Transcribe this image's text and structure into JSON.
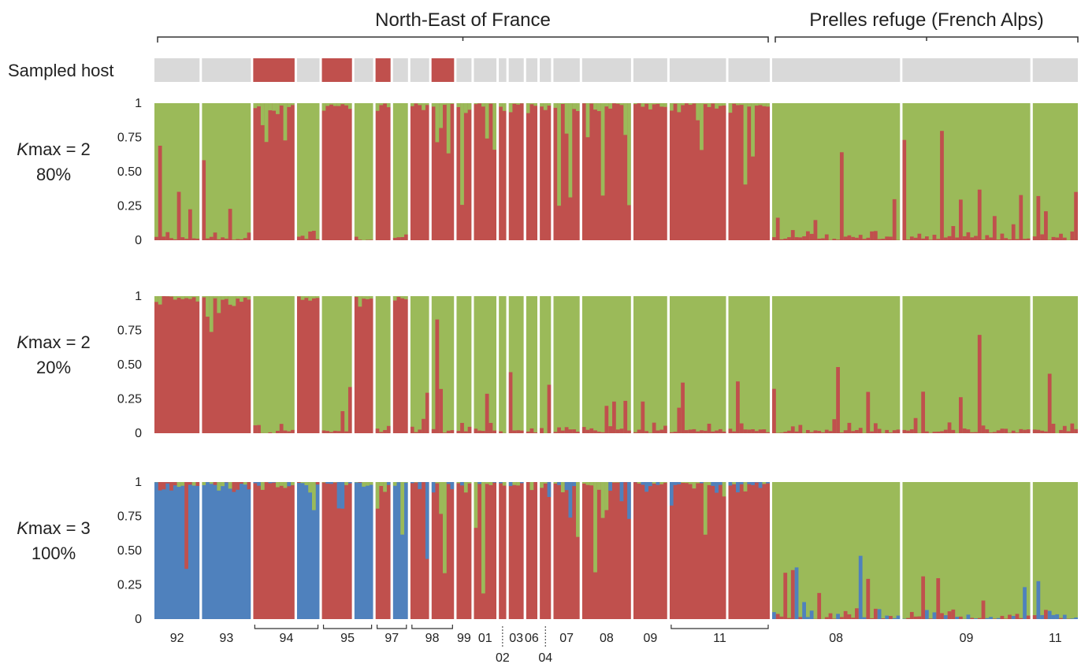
{
  "regions": [
    {
      "label": "North-East of France",
      "from": 0,
      "to": 19
    },
    {
      "label": "Prelles refuge (French Alps)",
      "from": 19,
      "to": 22
    }
  ],
  "host_row_label": "Sampled host",
  "colors": {
    "green": "#9bba59",
    "red": "#c0504d",
    "blue": "#4f81bd",
    "gray": "#d9d9d9",
    "separator": "#ffffff"
  },
  "chart_data": {
    "type": "bar",
    "stacked": true,
    "description_of_units": "Each population segment is a group of individuals; values give proportion of membership to each cluster",
    "ylim": [
      0,
      1
    ],
    "yticks": [
      "0",
      "0.25",
      "0.50",
      "0.75",
      "1"
    ],
    "populations": [
      {
        "id": "92",
        "n": 12,
        "host_red": false
      },
      {
        "id": "93",
        "n": 13,
        "host_red": false
      },
      {
        "id": "94a",
        "n": 11,
        "host_red": true
      },
      {
        "id": "94b",
        "n": 6,
        "host_red": false
      },
      {
        "id": "95a",
        "n": 8,
        "host_red": true
      },
      {
        "id": "95b",
        "n": 5,
        "host_red": false
      },
      {
        "id": "97a",
        "n": 4,
        "host_red": true
      },
      {
        "id": "97b",
        "n": 4,
        "host_red": false
      },
      {
        "id": "98a",
        "n": 5,
        "host_red": false
      },
      {
        "id": "98b",
        "n": 6,
        "host_red": true
      },
      {
        "id": "99",
        "n": 4,
        "host_red": false
      },
      {
        "id": "01",
        "n": 6,
        "host_red": false
      },
      {
        "id": "02",
        "n": 2,
        "host_red": false
      },
      {
        "id": "03",
        "n": 4,
        "host_red": false
      },
      {
        "id": "06",
        "n": 3,
        "host_red": false
      },
      {
        "id": "06b",
        "n": 3,
        "host_red": false
      },
      {
        "id": "07",
        "n": 7,
        "host_red": false
      },
      {
        "id": "08",
        "n": 13,
        "host_red": false
      },
      {
        "id": "09",
        "n": 9,
        "host_red": false
      },
      {
        "id": "11a",
        "n": 15,
        "host_red": false
      },
      {
        "id": "11b",
        "n": 11,
        "host_red": false
      },
      {
        "id": "A08",
        "n": 34,
        "host_red": false
      },
      {
        "id": "A09",
        "n": 34,
        "host_red": false
      },
      {
        "id": "A11",
        "n": 12,
        "host_red": false
      }
    ],
    "panels": [
      {
        "label_k": "K",
        "label_rest": "max = 2",
        "label_pct": "80%",
        "dominant_by_pop": [
          "green",
          "green",
          "red",
          "green",
          "red",
          "green",
          "red",
          "green",
          "red",
          "red",
          "red",
          "red",
          "red",
          "red",
          "red",
          "red",
          "red",
          "red",
          "red",
          "red",
          "red",
          "green",
          "green",
          "green"
        ]
      },
      {
        "label_k": "K",
        "label_rest": "max = 2",
        "label_pct": "20%",
        "dominant_by_pop": [
          "red",
          "red",
          "green",
          "red",
          "green",
          "red",
          "green",
          "red",
          "green",
          "green",
          "green",
          "green",
          "green",
          "green",
          "green",
          "green",
          "green",
          "green",
          "green",
          "green",
          "green",
          "green",
          "green",
          "green"
        ]
      },
      {
        "label_k": "K",
        "label_rest": "max = 3",
        "label_pct": "100%",
        "dominant_by_pop": [
          "blue",
          "blue",
          "red",
          "blue",
          "red",
          "blue",
          "red",
          "blue",
          "red",
          "red",
          "red",
          "red",
          "red",
          "red",
          "red",
          "red",
          "red",
          "red",
          "red",
          "red",
          "red",
          "green",
          "green",
          "green"
        ]
      }
    ],
    "x_labels": [
      {
        "text": "92",
        "row": 1
      },
      {
        "text": "93",
        "row": 1
      },
      {
        "text": "94",
        "row": 1
      },
      {
        "text": "95",
        "row": 1
      },
      {
        "text": "97",
        "row": 1
      },
      {
        "text": "98",
        "row": 1
      },
      {
        "text": "99",
        "row": 1
      },
      {
        "text": "01",
        "row": 1
      },
      {
        "text": "02",
        "row": 2
      },
      {
        "text": "03",
        "row": 1
      },
      {
        "text": "06",
        "row": 1
      },
      {
        "text": "04",
        "row": 2
      },
      {
        "text": "07",
        "row": 1
      },
      {
        "text": "08",
        "row": 1
      },
      {
        "text": "09",
        "row": 1
      },
      {
        "text": "11",
        "row": 1
      },
      {
        "text": "08",
        "row": 1
      },
      {
        "text": "09",
        "row": 1
      },
      {
        "text": "11",
        "row": 1
      }
    ]
  }
}
